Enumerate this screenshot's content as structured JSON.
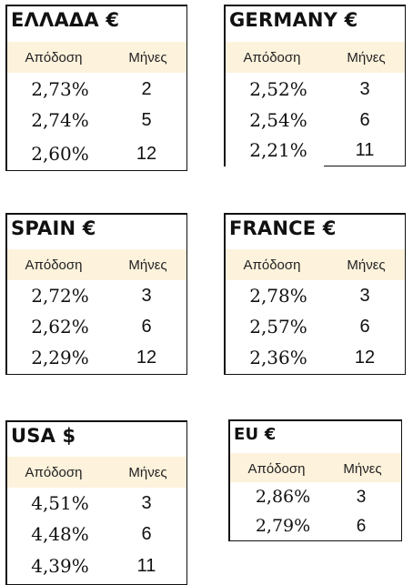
{
  "tables": [
    {
      "title": "ΕΛΛΑΔΑ €",
      "col_yield": "Απόδοση",
      "col_months": "Μήνες",
      "rows": [
        {
          "yield": "2,73%",
          "months": "2"
        },
        {
          "yield": "2,74%",
          "months": "5"
        },
        {
          "yield": "2,60%",
          "months": "12"
        }
      ]
    },
    {
      "title": "GERMANY €",
      "col_yield": "Απόδοση",
      "col_months": "Μήνες",
      "rows": [
        {
          "yield": "2,52%",
          "months": "3"
        },
        {
          "yield": "2,54%",
          "months": "6"
        },
        {
          "yield": "2,21%",
          "months": "11"
        }
      ]
    },
    {
      "title": "SPAIN €",
      "col_yield": "Απόδοση",
      "col_months": "Μήνες",
      "rows": [
        {
          "yield": "2,72%",
          "months": "3"
        },
        {
          "yield": "2,62%",
          "months": "6"
        },
        {
          "yield": "2,29%",
          "months": "12"
        }
      ]
    },
    {
      "title": "FRANCE €",
      "col_yield": "Απόδοση",
      "col_months": "Μήνες",
      "rows": [
        {
          "yield": "2,78%",
          "months": "3"
        },
        {
          "yield": "2,57%",
          "months": "6"
        },
        {
          "yield": "2,36%",
          "months": "12"
        }
      ]
    },
    {
      "title": "USA $",
      "col_yield": "Απόδοση",
      "col_months": "Μήνες",
      "rows": [
        {
          "yield": "4,51%",
          "months": "3"
        },
        {
          "yield": "4,48%",
          "months": "6"
        },
        {
          "yield": "4,39%",
          "months": "11"
        }
      ]
    },
    {
      "title": "EU €",
      "col_yield": "Απόδοση",
      "col_months": "Μήνες",
      "rows": [
        {
          "yield": "2,86%",
          "months": "3"
        },
        {
          "yield": "2,79%",
          "months": "6"
        }
      ]
    }
  ],
  "colors": {
    "header_bg": "#fdf2dc",
    "border": "#111111"
  }
}
